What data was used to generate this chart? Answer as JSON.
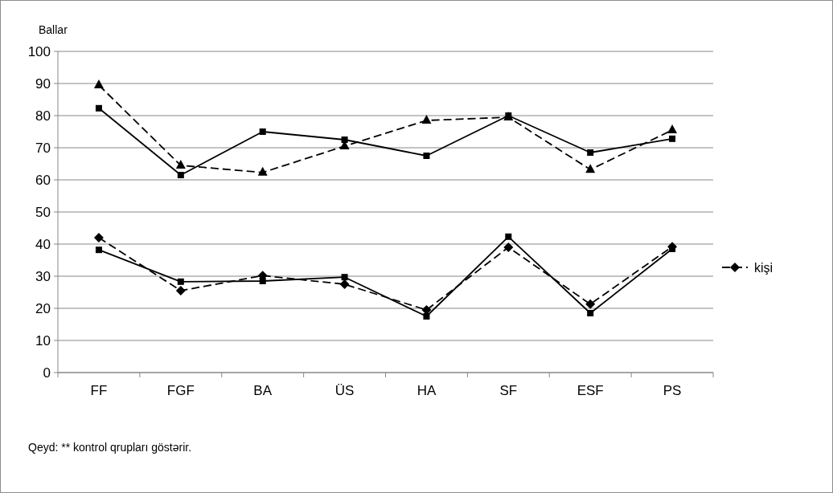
{
  "chart_data": {
    "type": "line",
    "ylabel": "Ballar",
    "categories": [
      "FF",
      "FGF",
      "BA",
      "ÜS",
      "HA",
      "SF",
      "ESF",
      "PS"
    ],
    "series": [
      {
        "color": "#000000",
        "marker": "triangle",
        "line_style": "dashed",
        "values": [
          89.5,
          64.5,
          62.3,
          70.5,
          78.5,
          79.5,
          63.2,
          75.5
        ]
      },
      {
        "color": "#000000",
        "marker": "square",
        "line_style": "solid",
        "values": [
          82.3,
          61.5,
          75,
          72.5,
          67.5,
          80,
          68.5,
          72.8
        ]
      },
      {
        "name": "kişi",
        "color": "#000000",
        "marker": "diamond",
        "line_style": "dashed",
        "values": [
          42,
          25.5,
          30.2,
          27.5,
          19.5,
          39,
          21.3,
          39.2
        ]
      },
      {
        "color": "#000000",
        "marker": "square",
        "line_style": "solid",
        "values": [
          38.2,
          28.3,
          28.5,
          29.7,
          17.5,
          42.3,
          18.5,
          38.5
        ]
      }
    ],
    "ylim": [
      0,
      100
    ],
    "yticks": [
      0,
      10,
      20,
      30,
      40,
      50,
      60,
      70,
      80,
      90,
      100
    ],
    "grid": "y",
    "legend": "right",
    "annotations": [
      "Qeyd: ** kontrol qrupları göstərir."
    ]
  }
}
